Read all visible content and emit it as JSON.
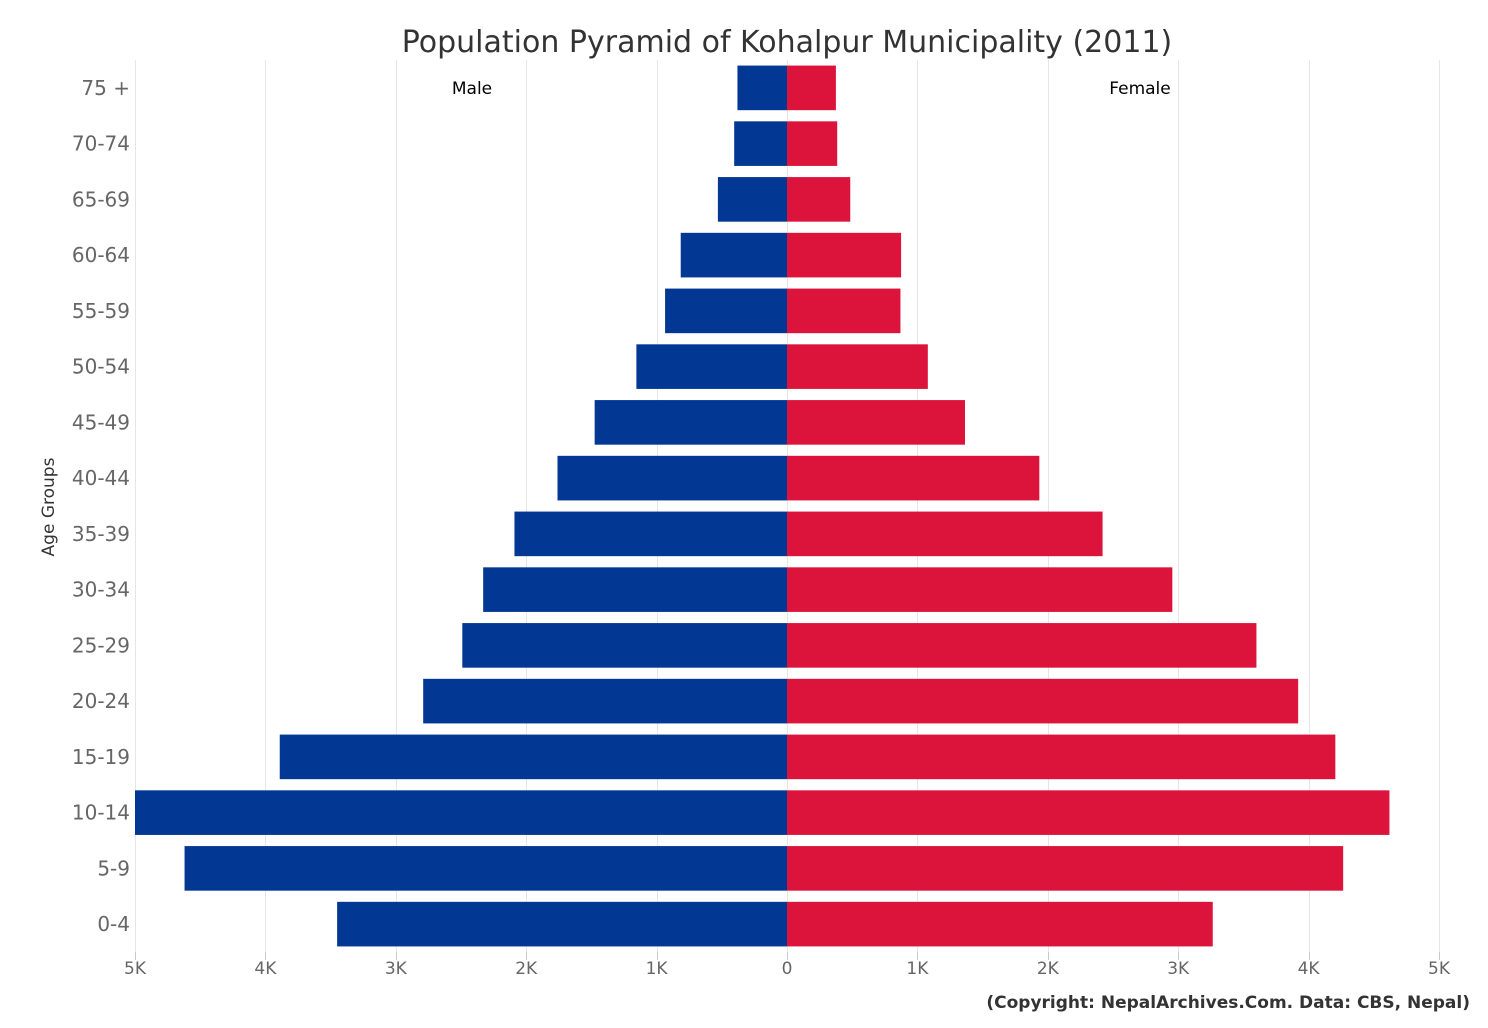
{
  "chart_data": {
    "type": "bar",
    "orientation": "horizontal-pyramid",
    "title": "Population Pyramid of Kohalpur Municipality (2011)",
    "ylabel": "Age Groups",
    "xlabel": "",
    "categories": [
      "75 +",
      "70-74",
      "65-69",
      "60-64",
      "55-59",
      "50-54",
      "45-49",
      "40-44",
      "35-39",
      "30-34",
      "25-29",
      "20-24",
      "15-19",
      "10-14",
      "5-9",
      "0-4"
    ],
    "xlim": [
      -5000,
      5000
    ],
    "x_ticks": [
      -5000,
      -4000,
      -3000,
      -2000,
      -1000,
      0,
      1000,
      2000,
      3000,
      4000,
      5000
    ],
    "x_tick_labels": [
      "5K",
      "4K",
      "3K",
      "2K",
      "1K",
      "0",
      "1K",
      "2K",
      "3K",
      "4K",
      "5K"
    ],
    "grid": true,
    "series": [
      {
        "name": "Male",
        "color": "#023894",
        "side": "left",
        "values": [
          380,
          405,
          530,
          815,
          935,
          1155,
          1475,
          1760,
          2090,
          2330,
          2490,
          2790,
          3890,
          5000,
          4620,
          3450
        ]
      },
      {
        "name": "Female",
        "color": "#dc143c",
        "side": "right",
        "values": [
          375,
          385,
          485,
          875,
          870,
          1080,
          1365,
          1935,
          2420,
          2955,
          3600,
          3920,
          4205,
          4620,
          4265,
          3265
        ]
      }
    ],
    "credit": "(Copyright: NepalArchives.Com. Data: CBS, Nepal)"
  }
}
